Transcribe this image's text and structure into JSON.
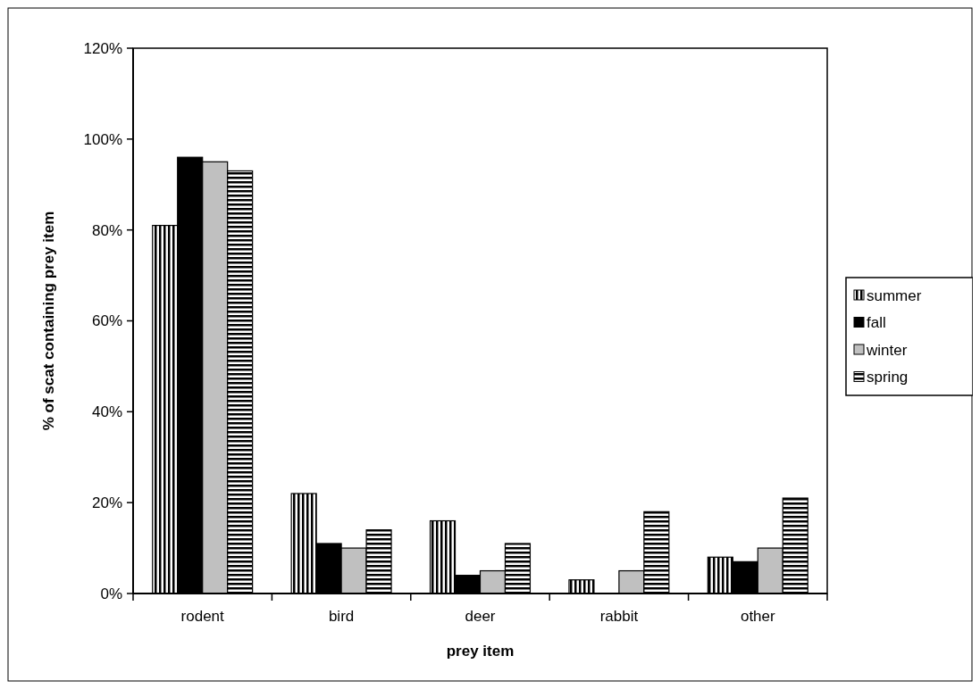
{
  "chart_data": {
    "type": "bar",
    "xlabel": "prey item",
    "ylabel": "% of scat containing prey item",
    "categories": [
      "rodent",
      "bird",
      "deer",
      "rabbit",
      "other"
    ],
    "series": [
      {
        "name": "summer",
        "color": "#000000",
        "values": [
          81,
          22,
          16,
          3,
          8
        ]
      },
      {
        "name": "fall",
        "color": "#000000",
        "values": [
          96,
          11,
          4,
          0,
          7
        ]
      },
      {
        "name": "winter",
        "color": "#c0c0c0",
        "values": [
          95,
          10,
          5,
          5,
          10
        ]
      },
      {
        "name": "spring",
        "color": "#000000",
        "values": [
          93,
          14,
          11,
          18,
          21
        ]
      }
    ],
    "ylim": [
      0,
      120
    ],
    "yticks": [
      {
        "value": 0,
        "label": "0%"
      },
      {
        "value": 20,
        "label": "20%"
      },
      {
        "value": 40,
        "label": "40%"
      },
      {
        "value": 60,
        "label": "60%"
      },
      {
        "value": 80,
        "label": "80%"
      },
      {
        "value": 100,
        "label": "100%"
      },
      {
        "value": 120,
        "label": "120%"
      }
    ],
    "grid": false,
    "legend": "right"
  }
}
